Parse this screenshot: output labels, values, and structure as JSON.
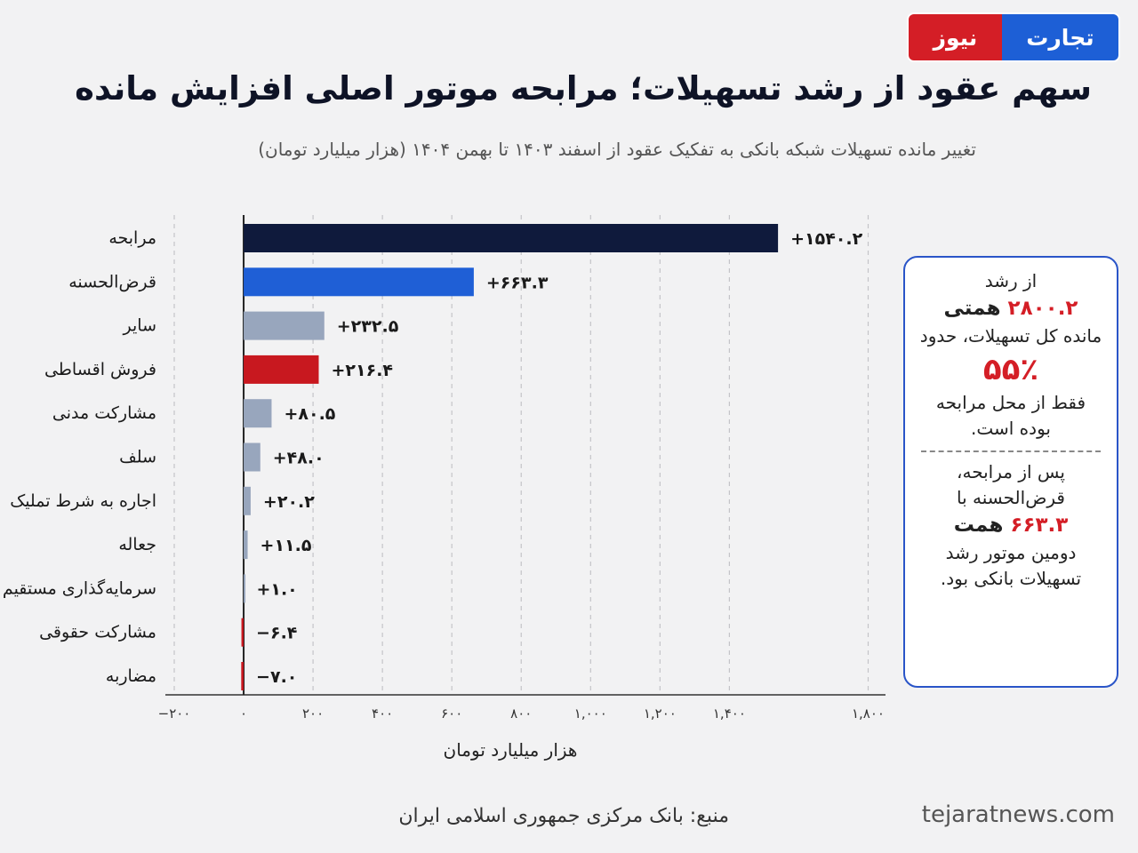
{
  "logo": {
    "part1": "تجارت",
    "part2": "نیوز"
  },
  "header": {
    "title": "سهم عقود از رشد تسهیلات؛ مرابحه موتور اصلی افزایش مانده",
    "subtitle": "تغییر مانده تسهیلات شبکه بانکی به تفکیک عقود از اسفند ۱۴۰۳ تا بهمن ۱۴۰۴ (هزار میلیارد تومان)"
  },
  "chart_data": {
    "type": "bar",
    "orientation": "horizontal",
    "categories": [
      "مرابحه",
      "قرض‌الحسنه",
      "سایر",
      "فروش اقساطی",
      "مشارکت مدنی",
      "سلف",
      "اجاره به شرط تملیک",
      "جعاله",
      "سرمایه‌گذاری مستقیم",
      "مشارکت حقوقی",
      "مضاربه"
    ],
    "values": [
      1540.2,
      663.3,
      232.5,
      216.4,
      80.5,
      48.0,
      20.2,
      11.5,
      1.0,
      -6.4,
      -7.0
    ],
    "value_labels": [
      "+۱۵۴۰.۲",
      "+۶۶۳.۳",
      "+۲۳۲.۵",
      "+۲۱۶.۴",
      "+۸۰.۵",
      "+۴۸.۰",
      "+۲۰.۲",
      "+۱۱.۵",
      "+۱.۰",
      "−۶.۴",
      "−۷.۰"
    ],
    "colors": [
      "#0f1a3c",
      "#1f5fd6",
      "#98a6bd",
      "#c8181f",
      "#98a6bd",
      "#98a6bd",
      "#98a6bd",
      "#98a6bd",
      "#98a6bd",
      "#c8181f",
      "#c8181f"
    ],
    "xlim": [
      -200,
      1850
    ],
    "ticks": [
      -200,
      0,
      200,
      400,
      600,
      800,
      1000,
      1200,
      1400,
      1800
    ],
    "tick_labels": [
      "−۲۰۰",
      "۰",
      "۲۰۰",
      "۴۰۰",
      "۶۰۰",
      "۸۰۰",
      "۱,۰۰۰",
      "۱,۲۰۰",
      "۱,۴۰۰",
      "۱,۸۰۰"
    ],
    "xlabel": "هزار میلیارد تومان",
    "grid": true
  },
  "infobox": {
    "line1": "از رشد",
    "line2_value": "۲۸۰۰.۲",
    "line2_unit": "همتی",
    "line3": "مانده کل تسهیلات، حدود",
    "pct": "۵۵٪",
    "line4": "فقط از محل مرابحه",
    "line5": "بوده است.",
    "line6": "پس از مرابحه،",
    "line7": "قرض‌الحسنه با",
    "line8_value": "۶۶۳.۳",
    "line8_unit": "همت",
    "line9": "دومین موتور رشد",
    "line10": "تسهیلات بانکی بود."
  },
  "footer": {
    "source": "منبع: بانک مرکزی جمهوری اسلامی ایران",
    "website": "tejaratnews.com"
  }
}
